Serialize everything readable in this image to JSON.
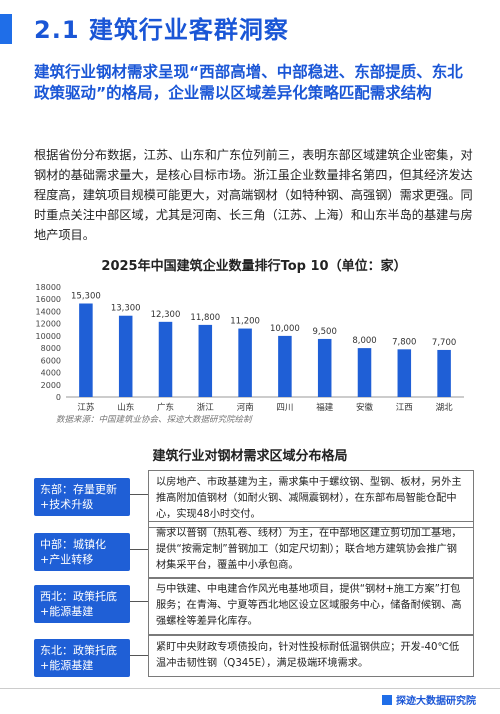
{
  "header": {
    "title": "2.1 建筑行业客群洞察",
    "subtitle": "建筑行业钢材需求呈现“西部高增、中部稳进、东部提质、东北政策驱动”的格局，企业需以区域差异化策略匹配需求结构"
  },
  "body_text": "根据省份分布数据，江苏、山东和广东位列前三，表明东部区域建筑企业密集，对钢材的基础需求量大，是核心目标市场。浙江虽企业数量排名第四，但其经济发达程度高，建筑项目规模可能更大，对高端钢材（如特种钢、高强钢）需求更强。同时重点关注中部区域，尤其是河南、长三角（江苏、上海）和山东半岛的基建与房地产项目。",
  "chart_data": {
    "type": "bar",
    "title": "2025年中国建筑企业数量排行Top 10（单位：家）",
    "categories": [
      "江苏",
      "山东",
      "广东",
      "浙江",
      "河南",
      "四川",
      "福建",
      "安徽",
      "江西",
      "湖北"
    ],
    "values": [
      15300,
      13300,
      12300,
      11800,
      11200,
      10000,
      9500,
      8000,
      7800,
      7700
    ],
    "value_labels": [
      "15,300",
      "13,300",
      "12,300",
      "11,800",
      "11,200",
      "10,000",
      "9,500",
      "8,000",
      "7,800",
      "7,700"
    ],
    "ylim": [
      0,
      18000
    ],
    "yticks": [
      "0",
      "2000",
      "4000",
      "6000",
      "8000",
      "10000",
      "12000",
      "14000",
      "16000",
      "18000"
    ],
    "bar_color": "#1f5fd6",
    "grid": false
  },
  "source": "数据来源：中国建筑业协会、探迹大数据研究院绘制",
  "distribution": {
    "title": "建筑行业对钢材需求区域分布格局",
    "rows": [
      {
        "label": "东部：存量更新+技术升级",
        "text": "以房地产、市政基建为主，需求集中于螺纹钢、型钢、板材，另外主推高附加值钢材（如耐火钢、减隔震钢材），在东部布局智能仓配中心，实现48小时交付。"
      },
      {
        "label": "中部：城镇化+产业转移",
        "text": "需求以普钢（热轧卷、线材）为主，在中部地区建立剪切加工基地，提供“按需定制”普钢加工（如定尺切割）；联合地方建筑协会推广钢材集采平台，覆盖中小承包商。"
      },
      {
        "label": "西北：政策托底+能源基建",
        "text": "与中铁建、中电建合作风光电基地项目，提供“钢材+施工方案”打包服务；在青海、宁夏等西北地区设立区域服务中心，储备耐候钢、高强螺栓等差异化库存。"
      },
      {
        "label": "东北：政策托底+能源基建",
        "text": "紧盯中央财政专项债投向，针对性投标耐低温钢供应；开发-40℃低温冲击韧性钢（Q345E），满足极端环境需求。"
      }
    ]
  },
  "footer": {
    "brand": "探迹大数据研究院"
  },
  "colors": {
    "accent": "#1a56d6",
    "bar": "#1f5fd6"
  }
}
